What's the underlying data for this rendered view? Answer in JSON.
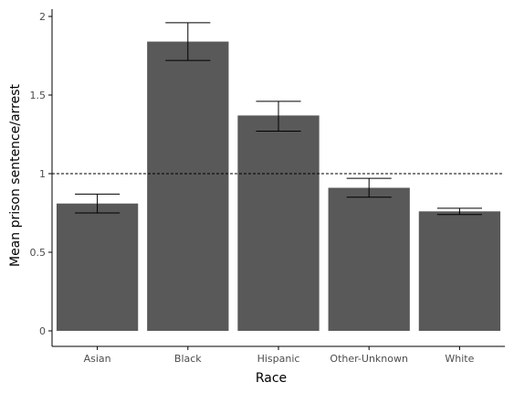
{
  "chart_data": {
    "type": "bar",
    "title": "",
    "xlabel": "Race",
    "ylabel": "Mean prison sentence/arrest",
    "categories": [
      "Asian",
      "Black",
      "Hispanic",
      "Other-Unknown",
      "White"
    ],
    "values": [
      0.81,
      1.84,
      1.37,
      0.91,
      0.76
    ],
    "error_bars": [
      {
        "low": 0.75,
        "high": 0.87
      },
      {
        "low": 1.72,
        "high": 1.96
      },
      {
        "low": 1.27,
        "high": 1.46
      },
      {
        "low": 0.85,
        "high": 0.97
      },
      {
        "low": 0.74,
        "high": 0.78
      }
    ],
    "reference_line": {
      "y": 1,
      "style": "dashed"
    },
    "ylim": [
      -0.1,
      2.05
    ],
    "yticks": [
      0,
      0.5,
      1,
      1.5,
      2
    ],
    "ytick_labels": [
      "0",
      "0.5",
      "1",
      "1.5",
      "2"
    ],
    "grid": false,
    "legend": "none",
    "colors": {
      "bar": "#595959",
      "errorbar": "#000000",
      "axis": "#000000",
      "reference_line": "#000000"
    }
  }
}
